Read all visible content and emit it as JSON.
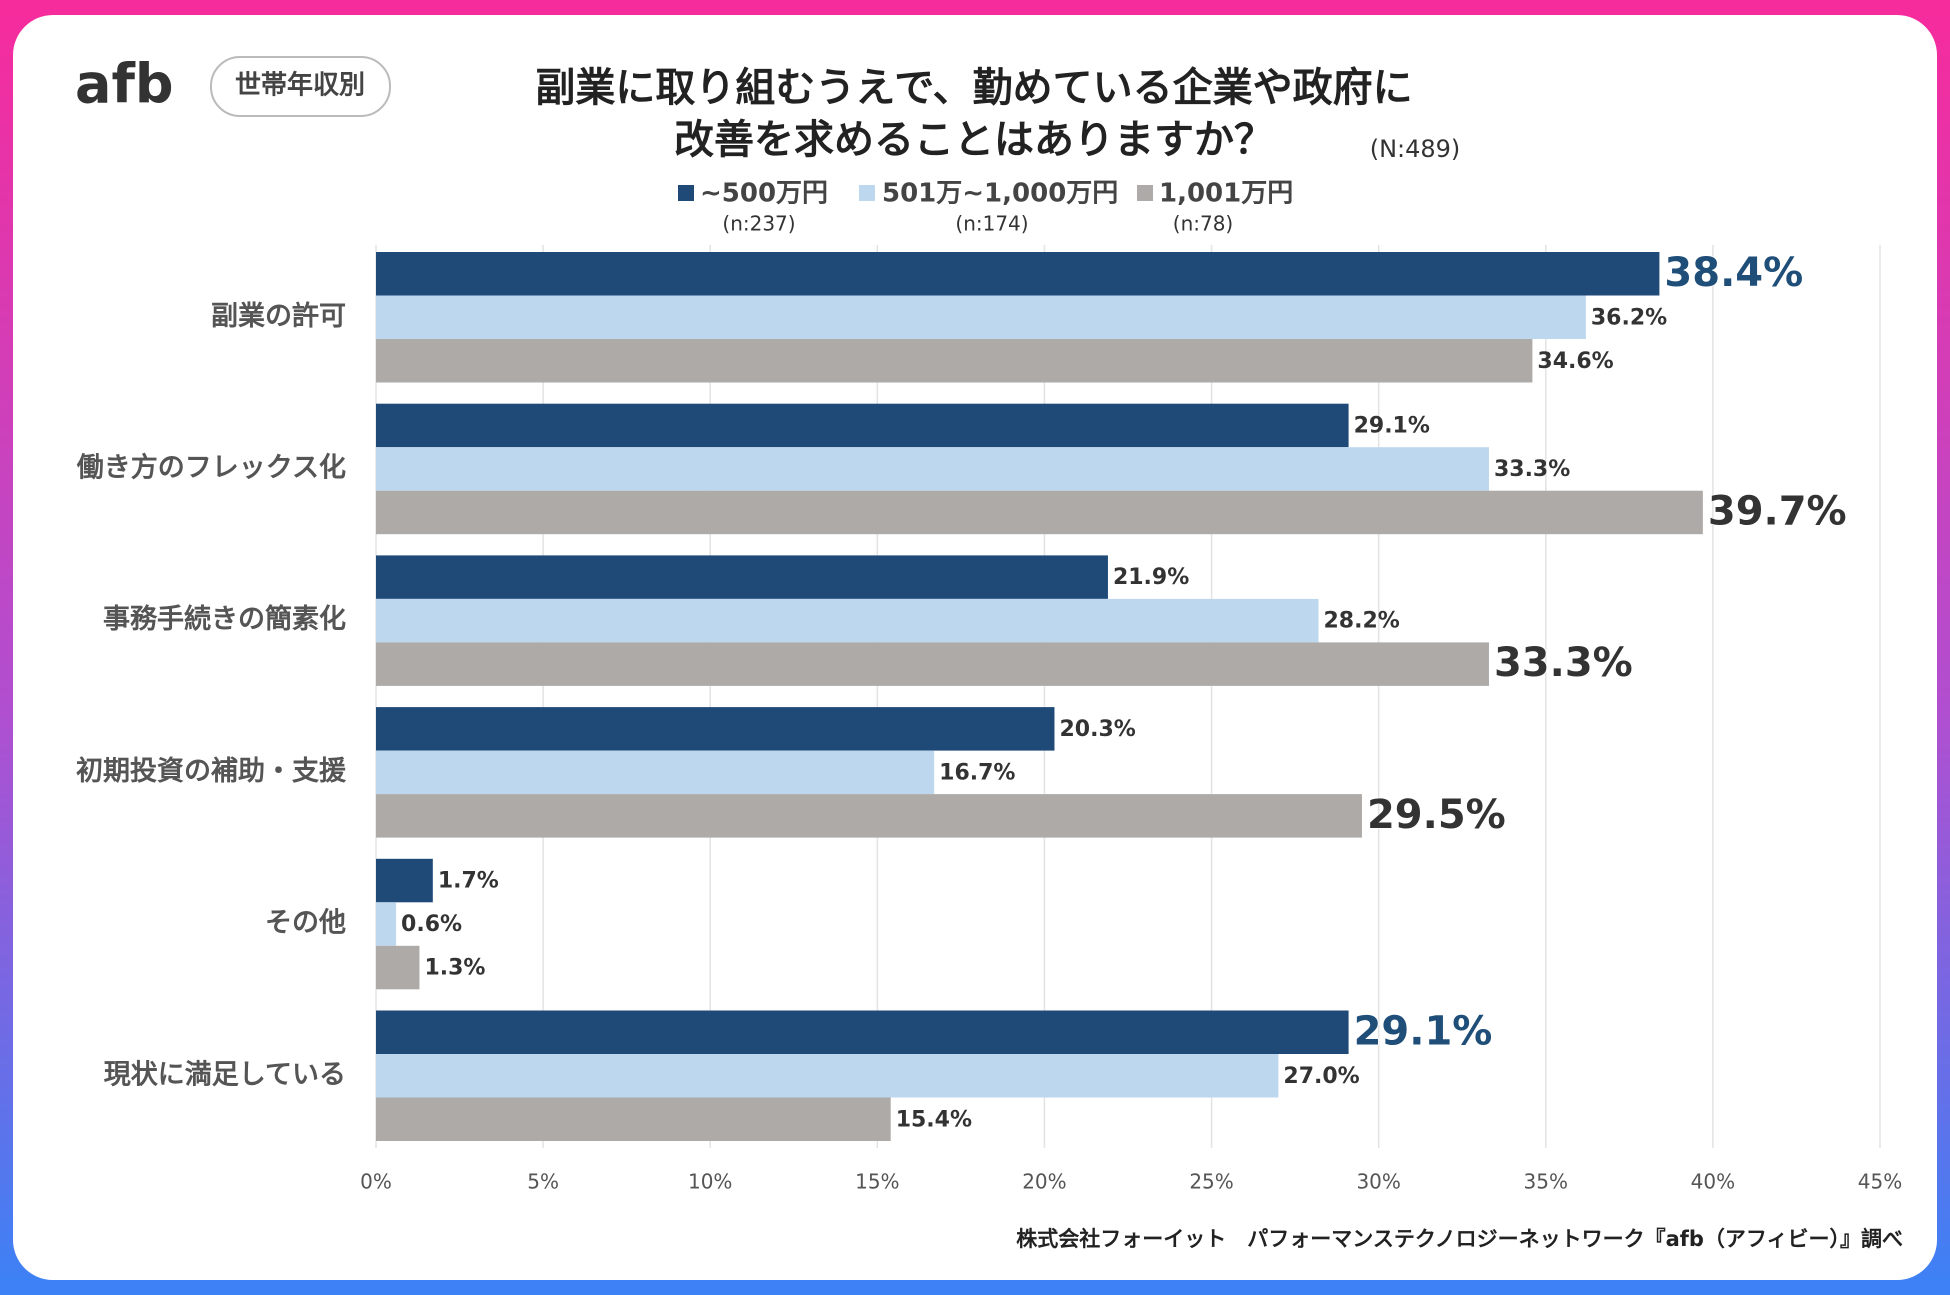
{
  "brand": "afb",
  "badge": "世帯年収別",
  "source": "株式会社フォーイット　パフォーマンステクノロジーネットワーク『afb（アフィビー）』調べ",
  "chart_data": {
    "type": "barh",
    "title": [
      "副業に取り組むうえで、勤めている企業や政府に",
      "改善を求めることはありますか？"
    ],
    "sample_size": "(N:489)",
    "categories": [
      "副業の許可",
      "働き方のフレックス化",
      "事務手続きの簡素化",
      "初期投資の補助・支援",
      "その他",
      "現状に満足している"
    ],
    "series": [
      {
        "name": "~500万円",
        "sample": "(n:237)",
        "color": "#1f4a78",
        "emphasis_color": "#1f4e79",
        "values": [
          38.4,
          29.1,
          21.9,
          20.3,
          1.7,
          29.1
        ],
        "value_labels": [
          "38.4%",
          "29.1%",
          "21.9%",
          "20.3%",
          "1.7%",
          "29.1%"
        ],
        "emphasis": [
          true,
          false,
          false,
          false,
          false,
          true
        ]
      },
      {
        "name": "501万~1,000万円",
        "sample": "(n:174)",
        "color": "#bdd7ee",
        "emphasis_color": "#333333",
        "values": [
          36.2,
          33.3,
          28.2,
          16.7,
          0.6,
          27.0
        ],
        "value_labels": [
          "36.2%",
          "33.3%",
          "28.2%",
          "16.7%",
          "0.6%",
          "27.0%"
        ],
        "emphasis": [
          false,
          false,
          false,
          false,
          false,
          false
        ]
      },
      {
        "name": "1,001万円",
        "sample": "(n:78)",
        "color": "#aeaaa8",
        "emphasis_color": "#333333",
        "values": [
          34.6,
          39.7,
          33.3,
          29.5,
          1.3,
          15.4
        ],
        "value_labels": [
          "34.6%",
          "39.7%",
          "33.3%",
          "29.5%",
          "1.3%",
          "15.4%"
        ],
        "emphasis": [
          false,
          true,
          true,
          true,
          false,
          false
        ]
      }
    ],
    "xlim": [
      0,
      45
    ],
    "xticks": [
      {
        "value": 0,
        "label": "0%"
      },
      {
        "value": 5,
        "label": "5%"
      },
      {
        "value": 10,
        "label": "10%"
      },
      {
        "value": 15,
        "label": "15%"
      },
      {
        "value": 20,
        "label": "20%"
      },
      {
        "value": 25,
        "label": "25%"
      },
      {
        "value": 30,
        "label": "30%"
      },
      {
        "value": 35,
        "label": "35%"
      },
      {
        "value": 40,
        "label": "40%"
      },
      {
        "value": 45,
        "label": "45%"
      }
    ],
    "grid": true
  }
}
